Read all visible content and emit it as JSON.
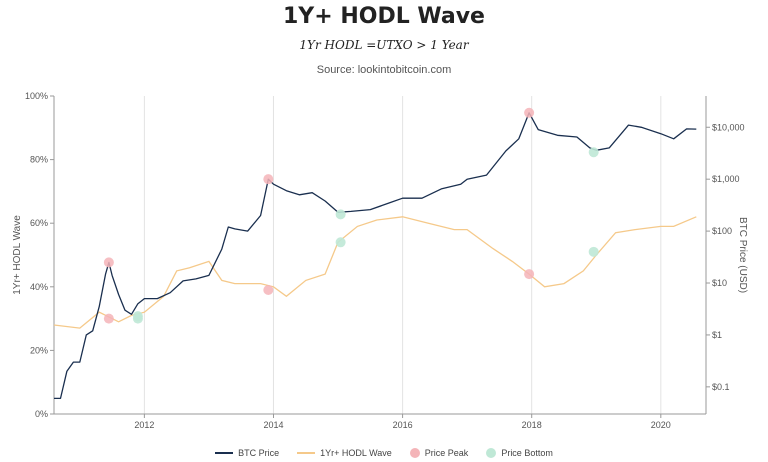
{
  "chart_data": {
    "type": "line",
    "title": "1Y+ HODL Wave",
    "subtitle": "1Yr HODL =UTXO > 1 Year",
    "source": "Source: lookintobitcoin.com",
    "y_left_label": "1Yr+ HODL Wave",
    "y_right_label": "BTC Price (USD)",
    "x_range": [
      2010.6,
      2020.7
    ],
    "x_ticks": [
      2012,
      2014,
      2016,
      2018,
      2020
    ],
    "y_left_range": [
      0,
      100
    ],
    "y_left_ticks": [
      "0%",
      "20%",
      "40%",
      "60%",
      "80%",
      "100%"
    ],
    "y_right_scale": "log",
    "y_right_range": [
      0.03,
      40000
    ],
    "y_right_ticks": [
      {
        "value": 0.1,
        "label": "$0.1"
      },
      {
        "value": 1,
        "label": "$1"
      },
      {
        "value": 10,
        "label": "$10"
      },
      {
        "value": 100,
        "label": "$100"
      },
      {
        "value": 1000,
        "label": "$1,000"
      },
      {
        "value": 10000,
        "label": "$10,000"
      }
    ],
    "grid": "vertical",
    "colors": {
      "btc_price": "#1a2f4f",
      "hodl_wave": "#f5c98a",
      "price_peak": "#f4b4b8",
      "price_bottom": "#bfe8d6"
    },
    "series": [
      {
        "name": "BTC Price",
        "axis": "right",
        "x": [
          2010.6,
          2010.7,
          2010.8,
          2010.9,
          2011.0,
          2011.1,
          2011.2,
          2011.3,
          2011.4,
          2011.45,
          2011.5,
          2011.6,
          2011.7,
          2011.8,
          2011.9,
          2012.0,
          2012.2,
          2012.4,
          2012.6,
          2012.8,
          2013.0,
          2013.2,
          2013.3,
          2013.4,
          2013.6,
          2013.8,
          2013.92,
          2014.0,
          2014.2,
          2014.4,
          2014.6,
          2014.8,
          2015.0,
          2015.2,
          2015.5,
          2015.8,
          2016.0,
          2016.3,
          2016.6,
          2016.9,
          2017.0,
          2017.3,
          2017.6,
          2017.8,
          2017.96,
          2018.1,
          2018.4,
          2018.7,
          2018.9,
          2019.0,
          2019.2,
          2019.5,
          2019.7,
          2020.0,
          2020.2,
          2020.4,
          2020.55
        ],
        "y": [
          0.06,
          0.06,
          0.2,
          0.3,
          0.3,
          1.0,
          1.2,
          3.5,
          15,
          25,
          14,
          6,
          3,
          2.5,
          4,
          5,
          5,
          6.5,
          11,
          12,
          14,
          45,
          120,
          110,
          100,
          200,
          1000,
          800,
          600,
          500,
          550,
          380,
          230,
          240,
          260,
          350,
          430,
          430,
          650,
          800,
          1000,
          1200,
          3500,
          6000,
          19000,
          9000,
          7000,
          6500,
          4000,
          3600,
          4000,
          11000,
          10000,
          7500,
          6000,
          9300,
          9200
        ]
      },
      {
        "name": "1Yr+ HODL Wave",
        "axis": "left",
        "x": [
          2010.6,
          2011.0,
          2011.3,
          2011.5,
          2011.6,
          2011.8,
          2012.0,
          2012.3,
          2012.5,
          2012.7,
          2013.0,
          2013.2,
          2013.4,
          2013.6,
          2013.8,
          2014.0,
          2014.2,
          2014.5,
          2014.8,
          2015.0,
          2015.3,
          2015.6,
          2016.0,
          2016.4,
          2016.8,
          2017.0,
          2017.4,
          2017.7,
          2017.96,
          2018.2,
          2018.5,
          2018.8,
          2019.0,
          2019.3,
          2019.6,
          2020.0,
          2020.2,
          2020.55
        ],
        "y": [
          28,
          27,
          32,
          30,
          29,
          31,
          32,
          37,
          45,
          46,
          48,
          42,
          41,
          41,
          41,
          40,
          37,
          42,
          44,
          54,
          59,
          61,
          62,
          60,
          58,
          58,
          52,
          48,
          44,
          40,
          41,
          45,
          50,
          57,
          58,
          59,
          59,
          62
        ]
      },
      {
        "name": "Price Peak",
        "axis": "left",
        "type": "scatter",
        "x": [
          2011.45,
          2013.92,
          2017.96
        ],
        "y": [
          30,
          39,
          44
        ],
        "price": [
          25,
          1000,
          19000
        ]
      },
      {
        "name": "Price Bottom",
        "axis": "left",
        "type": "scatter",
        "x": [
          2011.9,
          2015.04,
          2018.96
        ],
        "y": [
          30,
          54,
          51
        ],
        "price": [
          2.3,
          210,
          3300
        ]
      }
    ],
    "legend": [
      "BTC Price",
      "1Yr+ HODL Wave",
      "Price Peak",
      "Price Bottom"
    ],
    "legend_position": "bottom"
  }
}
